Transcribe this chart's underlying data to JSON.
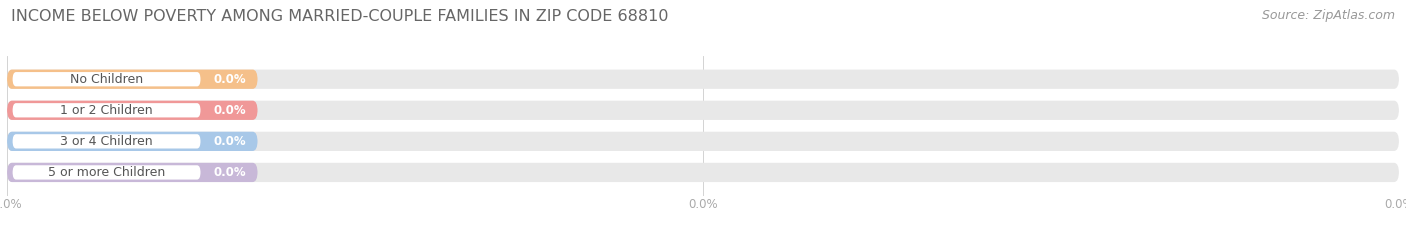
{
  "title": "INCOME BELOW POVERTY AMONG MARRIED-COUPLE FAMILIES IN ZIP CODE 68810",
  "source": "Source: ZipAtlas.com",
  "categories": [
    "No Children",
    "1 or 2 Children",
    "3 or 4 Children",
    "5 or more Children"
  ],
  "values": [
    0.0,
    0.0,
    0.0,
    0.0
  ],
  "bar_colors": [
    "#f5c08a",
    "#f09898",
    "#a8c8e8",
    "#c8b8d8"
  ],
  "bar_bg_color": "#e8e8e8",
  "white_pill_color": "#ffffff",
  "background_color": "#ffffff",
  "title_color": "#666666",
  "source_color": "#999999",
  "label_color": "#555555",
  "value_label_color": "#ffffff",
  "tick_label_color": "#aaaaaa",
  "bar_height": 0.62,
  "title_fontsize": 11.5,
  "source_fontsize": 9,
  "tick_fontsize": 8.5,
  "label_fontsize": 9,
  "value_fontsize": 8.5,
  "colored_bar_pct": 18.0,
  "white_pill_pct": 13.5,
  "rounding": 0.35
}
